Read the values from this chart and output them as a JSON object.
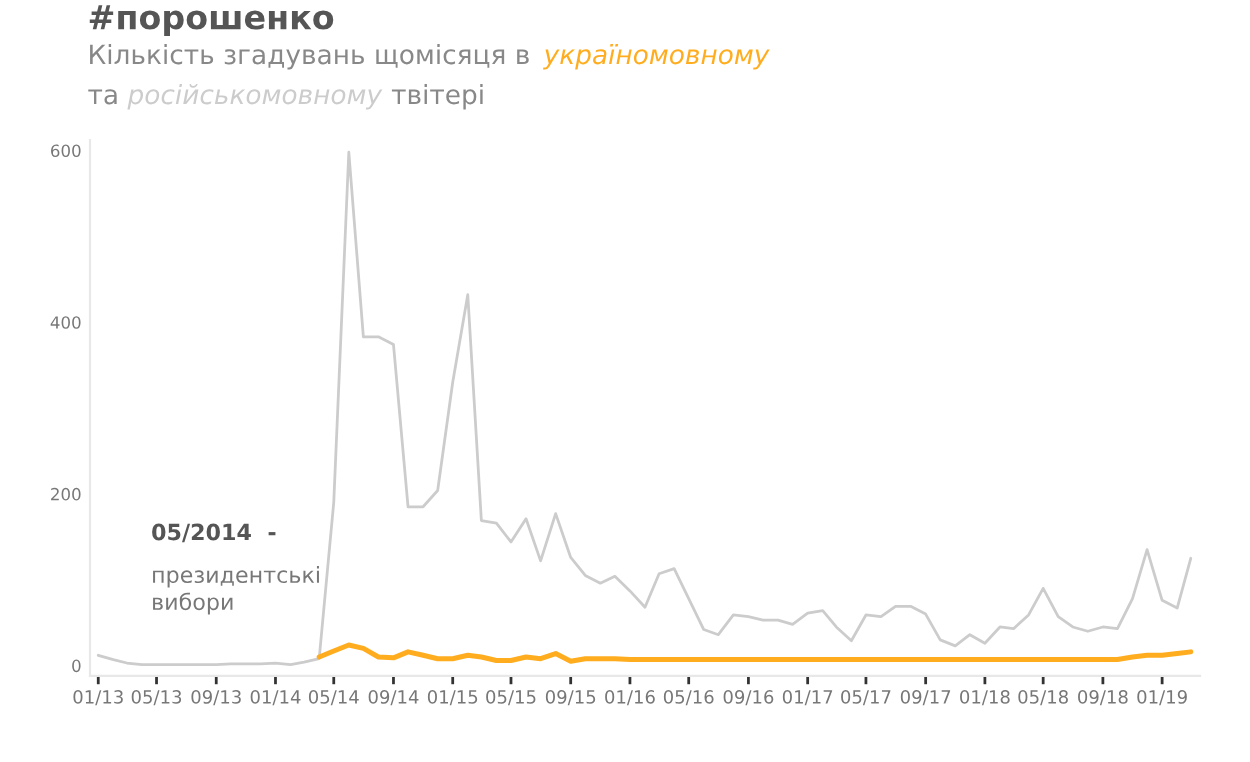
{
  "chart_data": {
    "type": "line",
    "title": "#порошенко",
    "subtitle": "Кількість згадувань щомісяця в",
    "x": [
      "2013-01",
      "2013-02",
      "2013-03",
      "2013-04",
      "2013-05",
      "2013-06",
      "2013-07",
      "2013-08",
      "2013-09",
      "2013-10",
      "2013-11",
      "2013-12",
      "2014-01",
      "2014-02",
      "2014-03",
      "2014-04",
      "2014-05",
      "2014-06",
      "2014-07",
      "2014-08",
      "2014-09",
      "2014-10",
      "2014-11",
      "2014-12",
      "2015-01",
      "2015-02",
      "2015-03",
      "2015-04",
      "2015-05",
      "2015-06",
      "2015-07",
      "2015-08",
      "2015-09",
      "2015-10",
      "2015-11",
      "2015-12",
      "2016-01",
      "2016-02",
      "2016-03",
      "2016-04",
      "2016-05",
      "2016-06",
      "2016-07",
      "2016-08",
      "2016-09",
      "2016-10",
      "2016-11",
      "2016-12",
      "2017-01",
      "2017-02",
      "2017-03",
      "2017-04",
      "2017-05",
      "2017-06",
      "2017-07",
      "2017-08",
      "2017-09",
      "2017-10",
      "2017-11",
      "2017-12",
      "2018-01",
      "2018-02",
      "2018-03",
      "2018-04",
      "2018-05",
      "2018-06",
      "2018-07",
      "2018-08",
      "2018-09",
      "2018-10",
      "2018-11",
      "2018-12",
      "2019-01",
      "2019-02",
      "2019-03"
    ],
    "series": [
      {
        "name": "російськомовному",
        "color": "#cccccc",
        "values": [
          12,
          7,
          3,
          1,
          1,
          1,
          1,
          1,
          1,
          2,
          2,
          2,
          3,
          1,
          4,
          8,
          190,
          598,
          383,
          383,
          374,
          185,
          185,
          204,
          330,
          432,
          169,
          166,
          144,
          171,
          122,
          177,
          126,
          105,
          96,
          104,
          87,
          68,
          107,
          113,
          78,
          42,
          36,
          59,
          57,
          53,
          53,
          48,
          61,
          64,
          45,
          29,
          59,
          57,
          69,
          69,
          60,
          30,
          23,
          36,
          26,
          45,
          43,
          59,
          90,
          57,
          45,
          40,
          45,
          43,
          78,
          135,
          76,
          67,
          125
        ]
      },
      {
        "name": "україномовному",
        "color": "#ffad1f",
        "values": [
          null,
          null,
          null,
          null,
          null,
          null,
          null,
          null,
          null,
          null,
          null,
          null,
          null,
          null,
          null,
          10,
          17,
          24,
          20,
          10,
          9,
          16,
          12,
          8,
          8,
          12,
          10,
          6,
          6,
          10,
          8,
          14,
          5,
          8,
          8,
          8,
          7,
          7,
          7,
          7,
          7,
          7,
          7,
          7,
          7,
          7,
          7,
          7,
          7,
          7,
          7,
          7,
          7,
          7,
          7,
          7,
          7,
          7,
          7,
          7,
          7,
          7,
          7,
          7,
          7,
          7,
          7,
          7,
          7,
          7,
          10,
          12,
          12,
          14,
          16
        ]
      }
    ],
    "xticks": [
      {
        "value": "2013-01",
        "label": "01/13"
      },
      {
        "value": "2013-05",
        "label": "05/13"
      },
      {
        "value": "2013-09",
        "label": "09/13"
      },
      {
        "value": "2014-01",
        "label": "01/14"
      },
      {
        "value": "2014-05",
        "label": "05/14"
      },
      {
        "value": "2014-09",
        "label": "09/14"
      },
      {
        "value": "2015-01",
        "label": "01/15"
      },
      {
        "value": "2015-05",
        "label": "05/15"
      },
      {
        "value": "2015-09",
        "label": "09/15"
      },
      {
        "value": "2016-01",
        "label": "01/16"
      },
      {
        "value": "2016-05",
        "label": "05/16"
      },
      {
        "value": "2016-09",
        "label": "09/16"
      },
      {
        "value": "2017-01",
        "label": "01/17"
      },
      {
        "value": "2017-05",
        "label": "05/17"
      },
      {
        "value": "2017-09",
        "label": "09/17"
      },
      {
        "value": "2018-01",
        "label": "01/18"
      },
      {
        "value": "2018-05",
        "label": "05/18"
      },
      {
        "value": "2018-09",
        "label": "09/18"
      },
      {
        "value": "2019-01",
        "label": "01/19"
      }
    ],
    "xlim": [
      "2012-12-15",
      "2019-03-20"
    ],
    "ylim": [
      -12,
      612
    ],
    "yticks": [
      0,
      200,
      400,
      600
    ],
    "annotations": [
      "та",
      "твітері",
      "05/2014  -",
      "президентські\nвибори"
    ],
    "grid": false,
    "legend": false,
    "marker": "none",
    "line_style": "solid"
  }
}
